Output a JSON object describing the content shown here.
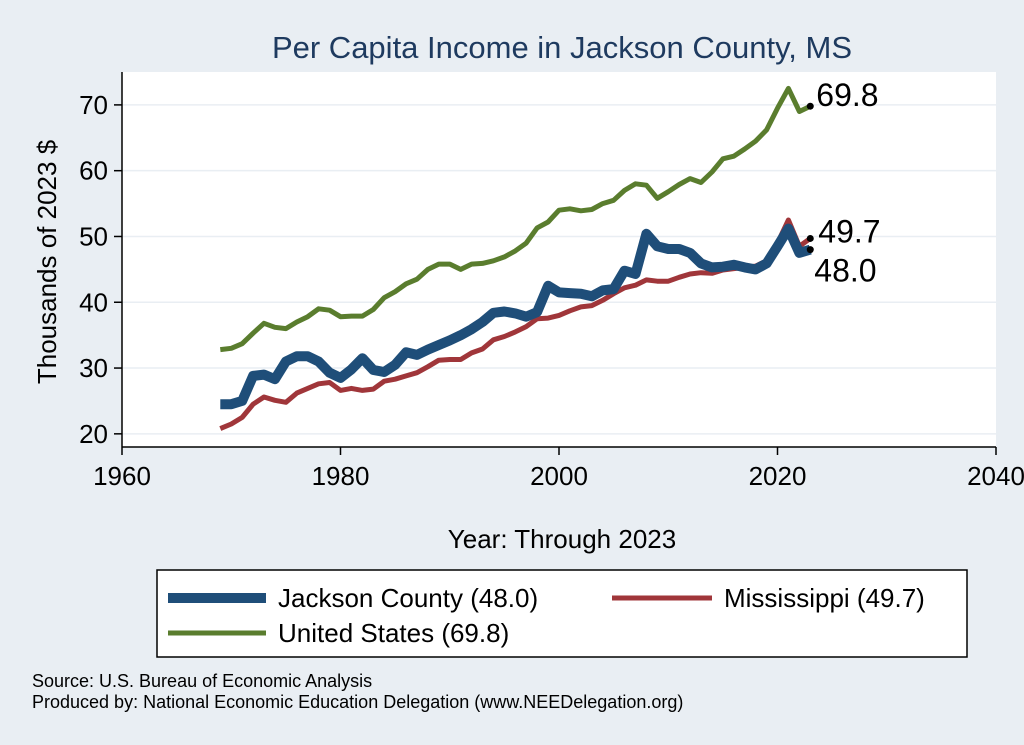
{
  "chart_data": {
    "type": "line",
    "title": "Per Capita Income in Jackson County, MS",
    "xlabel": "Year: Through 2023",
    "ylabel": "Thousands of 2023 $",
    "xlim": [
      1960,
      2040
    ],
    "ylim": [
      18,
      75
    ],
    "xticks": [
      1960,
      1980,
      2000,
      2020,
      2040
    ],
    "yticks": [
      20,
      30,
      40,
      50,
      60,
      70
    ],
    "grid": "horizontal",
    "legend_position": "bottom",
    "series": [
      {
        "name": "Jackson County (48.0)",
        "color": "#1f4e79",
        "end_label": "48.0",
        "x": [
          1969,
          1970,
          1971,
          1972,
          1973,
          1974,
          1975,
          1976,
          1977,
          1978,
          1979,
          1980,
          1981,
          1982,
          1983,
          1984,
          1985,
          1986,
          1987,
          1988,
          1989,
          1990,
          1991,
          1992,
          1993,
          1994,
          1995,
          1996,
          1997,
          1998,
          1999,
          2000,
          2001,
          2002,
          2003,
          2004,
          2005,
          2006,
          2007,
          2008,
          2009,
          2010,
          2011,
          2012,
          2013,
          2014,
          2015,
          2016,
          2017,
          2018,
          2019,
          2020,
          2021,
          2022,
          2023
        ],
        "values": [
          24.5,
          24.5,
          25.0,
          28.8,
          29.0,
          28.3,
          31.0,
          31.8,
          31.8,
          31.0,
          29.3,
          28.5,
          29.8,
          31.5,
          29.7,
          29.4,
          30.5,
          32.4,
          32.0,
          32.8,
          33.5,
          34.2,
          35.0,
          35.9,
          37.0,
          38.4,
          38.6,
          38.3,
          37.8,
          38.5,
          42.5,
          41.5,
          41.4,
          41.3,
          40.9,
          41.8,
          42.0,
          44.8,
          44.3,
          50.4,
          48.5,
          48.1,
          48.1,
          47.5,
          45.9,
          45.3,
          45.4,
          45.7,
          45.3,
          45.0,
          45.9,
          48.5,
          51.2,
          47.5,
          48.0
        ]
      },
      {
        "name": "Mississippi (49.7)",
        "color": "#a0363a",
        "end_label": "49.7",
        "x": [
          1969,
          1970,
          1971,
          1972,
          1973,
          1974,
          1975,
          1976,
          1977,
          1978,
          1979,
          1980,
          1981,
          1982,
          1983,
          1984,
          1985,
          1986,
          1987,
          1988,
          1989,
          1990,
          1991,
          1992,
          1993,
          1994,
          1995,
          1996,
          1997,
          1998,
          1999,
          2000,
          2001,
          2002,
          2003,
          2004,
          2005,
          2006,
          2007,
          2008,
          2009,
          2010,
          2011,
          2012,
          2013,
          2014,
          2015,
          2016,
          2017,
          2018,
          2019,
          2020,
          2021,
          2022,
          2023
        ],
        "values": [
          20.8,
          21.5,
          22.5,
          24.5,
          25.6,
          25.1,
          24.8,
          26.2,
          26.9,
          27.6,
          27.8,
          26.6,
          26.9,
          26.6,
          26.8,
          28.0,
          28.3,
          28.8,
          29.3,
          30.2,
          31.2,
          31.3,
          31.3,
          32.3,
          32.9,
          34.3,
          34.8,
          35.5,
          36.3,
          37.5,
          37.6,
          38.0,
          38.7,
          39.3,
          39.5,
          40.3,
          41.3,
          42.2,
          42.6,
          43.4,
          43.2,
          43.2,
          43.8,
          44.3,
          44.5,
          44.4,
          44.9,
          45.1,
          45.3,
          45.5,
          46.3,
          49.0,
          52.5,
          48.5,
          49.7
        ]
      },
      {
        "name": "United States (69.8)",
        "color": "#5a7d2e",
        "end_label": "69.8",
        "x": [
          1969,
          1970,
          1971,
          1972,
          1973,
          1974,
          1975,
          1976,
          1977,
          1978,
          1979,
          1980,
          1981,
          1982,
          1983,
          1984,
          1985,
          1986,
          1987,
          1988,
          1989,
          1990,
          1991,
          1992,
          1993,
          1994,
          1995,
          1996,
          1997,
          1998,
          1999,
          2000,
          2001,
          2002,
          2003,
          2004,
          2005,
          2006,
          2007,
          2008,
          2009,
          2010,
          2011,
          2012,
          2013,
          2014,
          2015,
          2016,
          2017,
          2018,
          2019,
          2020,
          2021,
          2022,
          2023
        ],
        "values": [
          32.8,
          33.0,
          33.7,
          35.3,
          36.8,
          36.2,
          36.0,
          37.0,
          37.8,
          39.0,
          38.8,
          37.8,
          37.9,
          37.9,
          38.9,
          40.7,
          41.6,
          42.8,
          43.5,
          45.0,
          45.8,
          45.8,
          45.0,
          45.8,
          45.9,
          46.3,
          46.9,
          47.8,
          49.0,
          51.3,
          52.2,
          54.0,
          54.2,
          53.9,
          54.1,
          55.0,
          55.5,
          57.0,
          58.0,
          57.8,
          55.8,
          56.8,
          57.9,
          58.8,
          58.2,
          59.8,
          61.8,
          62.2,
          63.3,
          64.5,
          66.2,
          69.5,
          72.5,
          69.0,
          69.8
        ]
      }
    ]
  },
  "footer": {
    "source": "Source: U.S. Bureau of Economic Analysis",
    "producer": "Produced by: National Economic Education Delegation (www.NEEDelegation.org)"
  }
}
